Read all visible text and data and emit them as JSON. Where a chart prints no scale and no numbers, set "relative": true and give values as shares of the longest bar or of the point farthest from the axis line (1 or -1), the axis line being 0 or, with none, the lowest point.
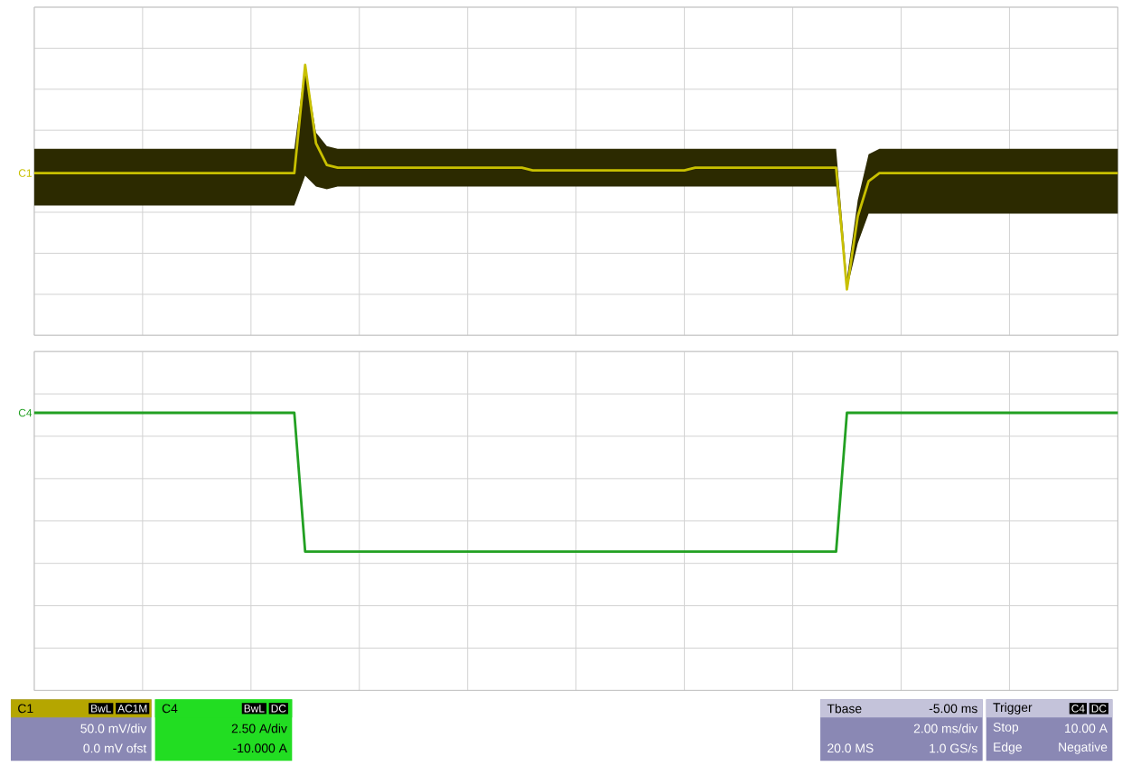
{
  "chart_data": [
    {
      "type": "line",
      "relative": true,
      "grid": true,
      "categories": [
        null,
        null,
        null,
        null,
        null,
        null,
        null,
        null,
        null,
        null,
        null,
        null,
        null,
        null,
        null,
        null,
        null,
        null,
        null,
        null,
        null,
        null,
        null,
        null,
        null,
        null,
        null,
        null,
        null,
        null,
        null,
        null,
        null,
        null,
        null,
        null,
        null,
        null,
        null,
        null,
        null,
        null,
        null,
        null,
        null,
        null,
        null,
        null,
        null,
        null,
        null,
        null,
        null,
        null,
        null,
        null,
        null,
        null,
        null,
        null,
        null,
        null,
        null,
        null,
        null,
        null,
        null,
        null,
        null,
        null,
        null,
        null,
        null,
        null,
        null,
        null,
        null,
        null,
        null,
        null,
        null,
        null,
        null,
        null,
        null,
        null,
        null,
        null,
        null,
        null,
        null,
        null,
        null,
        null,
        null,
        null,
        null,
        null,
        null,
        null,
        null
      ],
      "series": [
        {
          "name": "C1",
          "color": "#c8c000",
          "values": [
            0.6,
            0.6,
            0.6,
            0.6,
            0.6,
            0.6,
            0.6,
            0.6,
            0.6,
            0.6,
            0.6,
            0.6,
            0.6,
            0.6,
            0.6,
            0.6,
            0.6,
            0.6,
            0.6,
            0.6,
            0.6,
            0.6,
            0.6,
            0.6,
            0.6,
            1.0,
            0.71,
            0.63,
            0.62,
            0.62,
            0.62,
            0.62,
            0.62,
            0.62,
            0.62,
            0.62,
            0.62,
            0.62,
            0.62,
            0.62,
            0.62,
            0.62,
            0.62,
            0.62,
            0.62,
            0.62,
            0.61,
            0.61,
            0.61,
            0.61,
            0.61,
            0.61,
            0.61,
            0.61,
            0.61,
            0.61,
            0.61,
            0.61,
            0.61,
            0.61,
            0.61,
            0.62,
            0.62,
            0.62,
            0.62,
            0.62,
            0.62,
            0.62,
            0.62,
            0.62,
            0.62,
            0.62,
            0.62,
            0.62,
            0.62,
            0.17,
            0.44,
            0.57,
            0.6,
            0.6,
            0.6,
            0.6,
            0.6,
            0.6,
            0.6,
            0.6,
            0.6,
            0.6,
            0.6,
            0.6,
            0.6,
            0.6,
            0.6,
            0.6,
            0.6,
            0.6,
            0.6,
            0.6,
            0.6,
            0.6,
            0.6
          ],
          "upper": [
            0.69,
            0.69,
            0.69,
            0.69,
            0.69,
            0.69,
            0.69,
            0.69,
            0.69,
            0.69,
            0.69,
            0.69,
            0.69,
            0.69,
            0.69,
            0.69,
            0.69,
            0.69,
            0.69,
            0.69,
            0.69,
            0.69,
            0.69,
            0.69,
            0.69,
            1.0,
            0.75,
            0.7,
            0.69,
            0.69,
            0.69,
            0.69,
            0.69,
            0.69,
            0.69,
            0.69,
            0.69,
            0.69,
            0.69,
            0.69,
            0.69,
            0.69,
            0.69,
            0.69,
            0.69,
            0.69,
            0.69,
            0.69,
            0.69,
            0.69,
            0.69,
            0.69,
            0.69,
            0.69,
            0.69,
            0.69,
            0.69,
            0.69,
            0.69,
            0.69,
            0.69,
            0.69,
            0.69,
            0.69,
            0.69,
            0.69,
            0.69,
            0.69,
            0.69,
            0.69,
            0.69,
            0.69,
            0.69,
            0.69,
            0.69,
            0.21,
            0.5,
            0.67,
            0.69,
            0.69,
            0.69,
            0.69,
            0.69,
            0.69,
            0.69,
            0.69,
            0.69,
            0.69,
            0.69,
            0.69,
            0.69,
            0.69,
            0.69,
            0.69,
            0.69,
            0.69,
            0.69,
            0.69,
            0.69,
            0.69,
            0.69
          ],
          "lower": [
            0.48,
            0.48,
            0.48,
            0.48,
            0.48,
            0.48,
            0.48,
            0.48,
            0.48,
            0.48,
            0.48,
            0.48,
            0.48,
            0.48,
            0.48,
            0.48,
            0.48,
            0.48,
            0.48,
            0.48,
            0.48,
            0.48,
            0.48,
            0.48,
            0.48,
            0.59,
            0.55,
            0.54,
            0.55,
            0.55,
            0.55,
            0.55,
            0.55,
            0.55,
            0.55,
            0.55,
            0.55,
            0.55,
            0.55,
            0.55,
            0.55,
            0.55,
            0.55,
            0.55,
            0.55,
            0.55,
            0.55,
            0.55,
            0.55,
            0.55,
            0.55,
            0.55,
            0.55,
            0.55,
            0.55,
            0.55,
            0.55,
            0.55,
            0.55,
            0.55,
            0.55,
            0.55,
            0.55,
            0.55,
            0.55,
            0.55,
            0.55,
            0.55,
            0.55,
            0.55,
            0.55,
            0.55,
            0.55,
            0.55,
            0.55,
            0.17,
            0.34,
            0.45,
            0.45,
            0.45,
            0.45,
            0.45,
            0.45,
            0.45,
            0.45,
            0.45,
            0.45,
            0.45,
            0.45,
            0.45,
            0.45,
            0.45,
            0.45,
            0.45,
            0.45,
            0.45,
            0.45,
            0.45,
            0.45,
            0.45,
            0.45
          ]
        }
      ]
    },
    {
      "type": "line",
      "relative": true,
      "grid": true,
      "categories": [
        null,
        null,
        null,
        null,
        null,
        null,
        null,
        null,
        null,
        null,
        null,
        null,
        null,
        null,
        null,
        null,
        null,
        null,
        null,
        null,
        null,
        null,
        null,
        null,
        null,
        null,
        null,
        null,
        null,
        null,
        null,
        null,
        null,
        null,
        null,
        null,
        null,
        null,
        null,
        null,
        null,
        null,
        null,
        null,
        null,
        null,
        null,
        null,
        null,
        null,
        null,
        null,
        null,
        null,
        null,
        null,
        null,
        null,
        null,
        null,
        null,
        null,
        null,
        null,
        null,
        null,
        null,
        null,
        null,
        null,
        null,
        null,
        null,
        null,
        null,
        null,
        null,
        null,
        null,
        null,
        null,
        null,
        null,
        null,
        null,
        null,
        null,
        null,
        null,
        null,
        null,
        null,
        null,
        null,
        null,
        null,
        null,
        null,
        null,
        null,
        null
      ],
      "series": [
        {
          "name": "C4",
          "color": "#22a022",
          "values": [
            1,
            1,
            1,
            1,
            1,
            1,
            1,
            1,
            1,
            1,
            1,
            1,
            1,
            1,
            1,
            1,
            1,
            1,
            1,
            1,
            1,
            1,
            1,
            1,
            1,
            0.5,
            0.5,
            0.5,
            0.5,
            0.5,
            0.5,
            0.5,
            0.5,
            0.5,
            0.5,
            0.5,
            0.5,
            0.5,
            0.5,
            0.5,
            0.5,
            0.5,
            0.5,
            0.5,
            0.5,
            0.5,
            0.5,
            0.5,
            0.5,
            0.5,
            0.5,
            0.5,
            0.5,
            0.5,
            0.5,
            0.5,
            0.5,
            0.5,
            0.5,
            0.5,
            0.5,
            0.5,
            0.5,
            0.5,
            0.5,
            0.5,
            0.5,
            0.5,
            0.5,
            0.5,
            0.5,
            0.5,
            0.5,
            0.5,
            0.5,
            1,
            1,
            1,
            1,
            1,
            1,
            1,
            1,
            1,
            1,
            1,
            1,
            1,
            1,
            1,
            1,
            1,
            1,
            1,
            1,
            1,
            1,
            1,
            1,
            1,
            1
          ]
        }
      ]
    },
    {
      "type": "other",
      "annotations": [
        "C1",
        "BwL",
        "AC1M",
        "50.0 mV/div",
        "0.0 mV ofst",
        "C4",
        "BwL",
        "DC",
        "2.50 A/div",
        "-10.000 A",
        "Tbase",
        "-5.00 ms",
        "2.00 ms/div",
        "20.0 MS",
        "1.0 GS/s",
        "Trigger",
        "C4",
        "DC",
        "Stop",
        "10.00 A",
        "Edge",
        "Negative"
      ]
    }
  ]
}
